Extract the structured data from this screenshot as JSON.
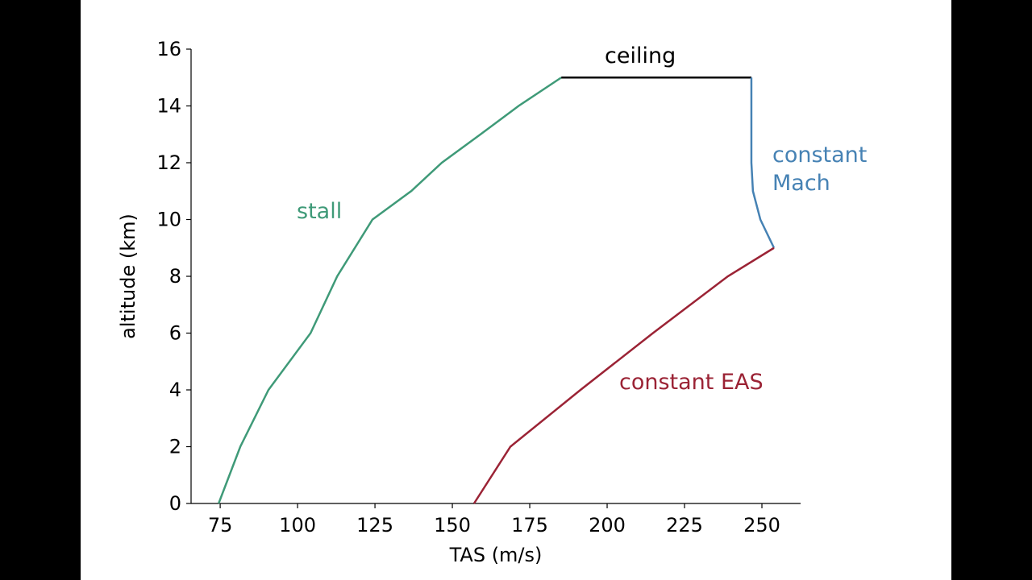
{
  "chart_data": {
    "type": "line",
    "x_label": "TAS (m/s)",
    "y_label": "altitude (km)",
    "xlim": [
      65.6,
      262.5
    ],
    "xticks": [
      75,
      100,
      125,
      150,
      175,
      200,
      225,
      250
    ],
    "ylim": [
      0,
      16
    ],
    "yticks": [
      0,
      2,
      4,
      6,
      8,
      10,
      12,
      14,
      16
    ],
    "series": [
      {
        "name": "stall",
        "color": "#3f9a78",
        "x": [
          74.5,
          81.5,
          90.6,
          104.2,
          112.8,
          124.2,
          136.7,
          146.6,
          159.1,
          171.4,
          185.2
        ],
        "values": [
          0,
          2,
          4,
          6,
          8,
          10,
          11,
          12,
          13,
          14,
          15
        ]
      },
      {
        "name": "ceiling",
        "color": "#000000",
        "x": [
          185.2,
          246.6
        ],
        "values": [
          15,
          15
        ]
      },
      {
        "name": "constant Mach",
        "color": "#4682b4",
        "x": [
          246.6,
          246.6,
          247.1,
          249.5,
          253.9
        ],
        "values": [
          15,
          12,
          11,
          10,
          9
        ]
      },
      {
        "name": "constant EAS",
        "color": "#9b2335",
        "x": [
          157.0,
          168.75,
          191.4,
          214.8,
          239.0,
          253.9
        ],
        "values": [
          0,
          2,
          4,
          6,
          8,
          9
        ]
      }
    ]
  }
}
